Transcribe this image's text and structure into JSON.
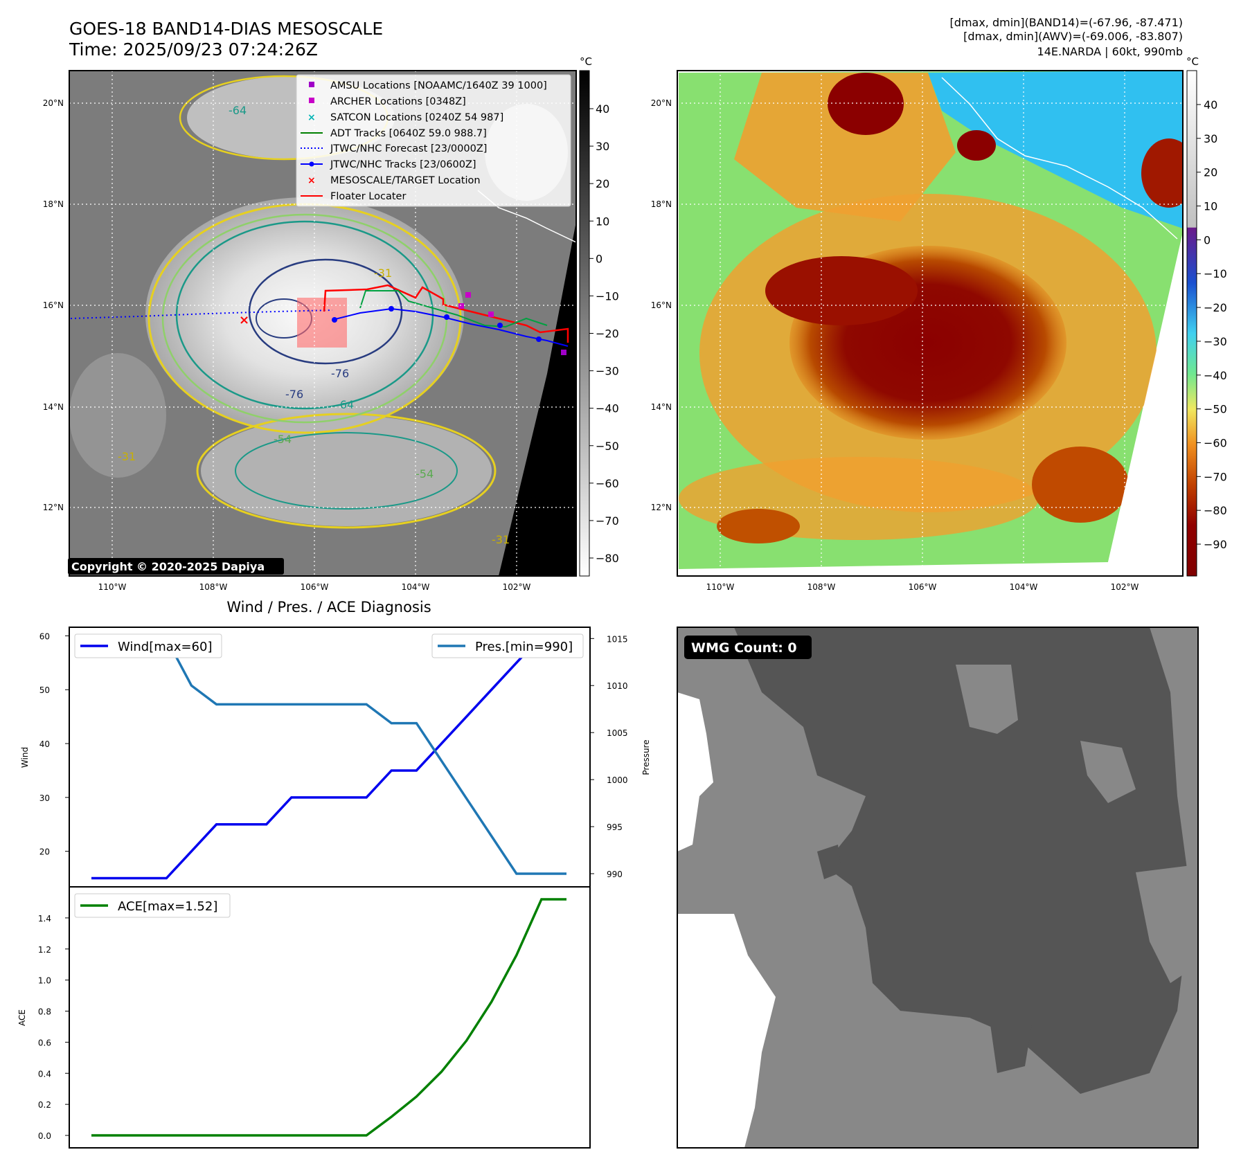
{
  "header": {
    "title": "GOES-18 BAND14-DIAS MESOSCALE",
    "time": "Time: 2025/09/23 07:24:26Z",
    "stats_line1": "[dmax, dmin](BAND14)=(-67.96, -87.471)",
    "stats_line2": "[dmax, dmin](AWV)=(-69.006, -83.807)",
    "stats_line3": "14E.NARDA | 60kt, 990mb"
  },
  "map": {
    "lat_labels": [
      "20°N",
      "18°N",
      "16°N",
      "14°N",
      "12°N"
    ],
    "lon_labels": [
      "110°W",
      "108°W",
      "106°W",
      "104°W",
      "102°W"
    ],
    "copyright": "Copyright © 2020-2025 Dapiya",
    "contour_labels": [
      "-76",
      "-76",
      "-64",
      "-64",
      "-54",
      "-54",
      "-31",
      "-31",
      "-31"
    ],
    "legend": [
      {
        "label": "AMSU Locations [NOAAMC/1640Z 39 1000]",
        "symbol": "square",
        "color": "#a000c8"
      },
      {
        "label": "ARCHER Locations [0348Z]",
        "symbol": "square",
        "color": "#c800c8"
      },
      {
        "label": "SATCON Locations [0240Z 54 987]",
        "symbol": "x",
        "color": "#00b4b4"
      },
      {
        "label": "ADT Tracks [0640Z 59.0 988.7]",
        "symbol": "line",
        "color": "#008000"
      },
      {
        "label": "JTWC/NHC Forecast [23/0000Z]",
        "symbol": "dotted",
        "color": "#0000ff"
      },
      {
        "label": "JTWC/NHC Tracks [23/0600Z]",
        "symbol": "line-dot",
        "color": "#0000ff"
      },
      {
        "label": "MESOSCALE/TARGET Location",
        "symbol": "x",
        "color": "#ff0000"
      },
      {
        "label": "Floater Locater",
        "symbol": "line",
        "color": "#ff0000"
      }
    ]
  },
  "colorbar_gray": {
    "unit": "°C",
    "ticks": [
      "40",
      "30",
      "20",
      "10",
      "0",
      "−10",
      "−20",
      "−30",
      "−40",
      "−50",
      "−60",
      "−70",
      "−80"
    ]
  },
  "colorbar_color": {
    "unit": "°C",
    "ticks": [
      "40",
      "30",
      "20",
      "10",
      "0",
      "−10",
      "−20",
      "−30",
      "−40",
      "−50",
      "−60",
      "−70",
      "−80",
      "−90"
    ]
  },
  "wmg": {
    "label": "WMG Count: 0"
  },
  "chart_data": [
    {
      "type": "line",
      "title": "Wind / Pres. / ACE Diagnosis",
      "ylabel": "Wind",
      "y2label": "Pressure",
      "ylim": [
        13.4,
        61.6
      ],
      "y2lim": [
        988.6,
        1016.2
      ],
      "yticks": [
        "20",
        "30",
        "40",
        "50",
        "60"
      ],
      "y2ticks": [
        "990",
        "995",
        "1000",
        "1005",
        "1010",
        "1015"
      ],
      "x": [
        0,
        1,
        2,
        3,
        4,
        5,
        6,
        7,
        8,
        9,
        10,
        11,
        12,
        13,
        14,
        15,
        16,
        17,
        18,
        19
      ],
      "series": [
        {
          "name": "Wind[max=60]",
          "axis": "left",
          "color": "#0000ee",
          "values": [
            15,
            15,
            15,
            15,
            20,
            25,
            25,
            25,
            30,
            30,
            30,
            30,
            35,
            35,
            40,
            45,
            50,
            55,
            60,
            60
          ]
        },
        {
          "name": "Pres.[min=990]",
          "axis": "right",
          "color": "#1f77b4",
          "values": [
            1015,
            1015,
            1015,
            1015,
            1010,
            1008,
            1008,
            1008,
            1008,
            1008,
            1008,
            1008,
            1006,
            1006,
            1002,
            998,
            994,
            990,
            990,
            990
          ]
        }
      ]
    },
    {
      "type": "line",
      "ylabel": "ACE",
      "ylim": [
        -0.08,
        1.6
      ],
      "yticks": [
        "0.0",
        "0.2",
        "0.4",
        "0.6",
        "0.8",
        "1.0",
        "1.2",
        "1.4"
      ],
      "x": [
        0,
        1,
        2,
        3,
        4,
        5,
        6,
        7,
        8,
        9,
        10,
        11,
        12,
        13,
        14,
        15,
        16,
        17,
        18,
        19
      ],
      "series": [
        {
          "name": "ACE[max=1.52]",
          "color": "#008000",
          "values": [
            0,
            0,
            0,
            0,
            0,
            0,
            0,
            0,
            0,
            0,
            0,
            0,
            0.12,
            0.25,
            0.41,
            0.61,
            0.86,
            1.16,
            1.52,
            1.52
          ]
        }
      ]
    }
  ]
}
